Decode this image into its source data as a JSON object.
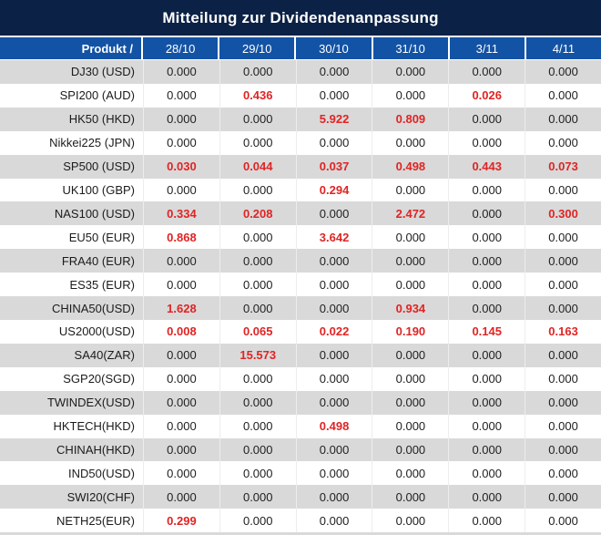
{
  "title": "Mitteilung zur Dividendenanpassung",
  "colors": {
    "title_bar_navy": "#0b2145",
    "header_blue": "#1353a5",
    "row_gray": "#d9d9d9",
    "row_white": "#ffffff",
    "value_black": "#212121",
    "value_red": "#e02424"
  },
  "table": {
    "product_header": "Produkt /",
    "date_headers": [
      "28/10",
      "29/10",
      "30/10",
      "31/10",
      "3/11",
      "4/11"
    ],
    "rows": [
      {
        "product": "DJ30 (USD)",
        "values": [
          "0.000",
          "0.000",
          "0.000",
          "0.000",
          "0.000",
          "0.000"
        ],
        "red": [
          false,
          false,
          false,
          false,
          false,
          false
        ]
      },
      {
        "product": "SPI200 (AUD)",
        "values": [
          "0.000",
          "0.436",
          "0.000",
          "0.000",
          "0.026",
          "0.000"
        ],
        "red": [
          false,
          true,
          false,
          false,
          true,
          false
        ]
      },
      {
        "product": "HK50 (HKD)",
        "values": [
          "0.000",
          "0.000",
          "5.922",
          "0.809",
          "0.000",
          "0.000"
        ],
        "red": [
          false,
          false,
          true,
          true,
          false,
          false
        ]
      },
      {
        "product": "Nikkei225 (JPN)",
        "values": [
          "0.000",
          "0.000",
          "0.000",
          "0.000",
          "0.000",
          "0.000"
        ],
        "red": [
          false,
          false,
          false,
          false,
          false,
          false
        ]
      },
      {
        "product": "SP500 (USD)",
        "values": [
          "0.030",
          "0.044",
          "0.037",
          "0.498",
          "0.443",
          "0.073"
        ],
        "red": [
          true,
          true,
          true,
          true,
          true,
          true
        ]
      },
      {
        "product": "UK100 (GBP)",
        "values": [
          "0.000",
          "0.000",
          "0.294",
          "0.000",
          "0.000",
          "0.000"
        ],
        "red": [
          false,
          false,
          true,
          false,
          false,
          false
        ]
      },
      {
        "product": "NAS100 (USD)",
        "values": [
          "0.334",
          "0.208",
          "0.000",
          "2.472",
          "0.000",
          "0.300"
        ],
        "red": [
          true,
          true,
          false,
          true,
          false,
          true
        ]
      },
      {
        "product": "EU50 (EUR)",
        "values": [
          "0.868",
          "0.000",
          "3.642",
          "0.000",
          "0.000",
          "0.000"
        ],
        "red": [
          true,
          false,
          true,
          false,
          false,
          false
        ]
      },
      {
        "product": "FRA40 (EUR)",
        "values": [
          "0.000",
          "0.000",
          "0.000",
          "0.000",
          "0.000",
          "0.000"
        ],
        "red": [
          false,
          false,
          false,
          false,
          false,
          false
        ]
      },
      {
        "product": "ES35 (EUR)",
        "values": [
          "0.000",
          "0.000",
          "0.000",
          "0.000",
          "0.000",
          "0.000"
        ],
        "red": [
          false,
          false,
          false,
          false,
          false,
          false
        ]
      },
      {
        "product": "CHINA50(USD)",
        "values": [
          "1.628",
          "0.000",
          "0.000",
          "0.934",
          "0.000",
          "0.000"
        ],
        "red": [
          true,
          false,
          false,
          true,
          false,
          false
        ]
      },
      {
        "product": "US2000(USD)",
        "values": [
          "0.008",
          "0.065",
          "0.022",
          "0.190",
          "0.145",
          "0.163"
        ],
        "red": [
          true,
          true,
          true,
          true,
          true,
          true
        ]
      },
      {
        "product": "SA40(ZAR)",
        "values": [
          "0.000",
          "15.573",
          "0.000",
          "0.000",
          "0.000",
          "0.000"
        ],
        "red": [
          false,
          true,
          false,
          false,
          false,
          false
        ]
      },
      {
        "product": "SGP20(SGD)",
        "values": [
          "0.000",
          "0.000",
          "0.000",
          "0.000",
          "0.000",
          "0.000"
        ],
        "red": [
          false,
          false,
          false,
          false,
          false,
          false
        ]
      },
      {
        "product": "TWINDEX(USD)",
        "values": [
          "0.000",
          "0.000",
          "0.000",
          "0.000",
          "0.000",
          "0.000"
        ],
        "red": [
          false,
          false,
          false,
          false,
          false,
          false
        ]
      },
      {
        "product": "HKTECH(HKD)",
        "values": [
          "0.000",
          "0.000",
          "0.498",
          "0.000",
          "0.000",
          "0.000"
        ],
        "red": [
          false,
          false,
          true,
          false,
          false,
          false
        ]
      },
      {
        "product": "CHINAH(HKD)",
        "values": [
          "0.000",
          "0.000",
          "0.000",
          "0.000",
          "0.000",
          "0.000"
        ],
        "red": [
          false,
          false,
          false,
          false,
          false,
          false
        ]
      },
      {
        "product": "IND50(USD)",
        "values": [
          "0.000",
          "0.000",
          "0.000",
          "0.000",
          "0.000",
          "0.000"
        ],
        "red": [
          false,
          false,
          false,
          false,
          false,
          false
        ]
      },
      {
        "product": "SWI20(CHF)",
        "values": [
          "0.000",
          "0.000",
          "0.000",
          "0.000",
          "0.000",
          "0.000"
        ],
        "red": [
          false,
          false,
          false,
          false,
          false,
          false
        ]
      },
      {
        "product": "NETH25(EUR)",
        "values": [
          "0.299",
          "0.000",
          "0.000",
          "0.000",
          "0.000",
          "0.000"
        ],
        "red": [
          true,
          false,
          false,
          false,
          false,
          false
        ]
      }
    ]
  }
}
